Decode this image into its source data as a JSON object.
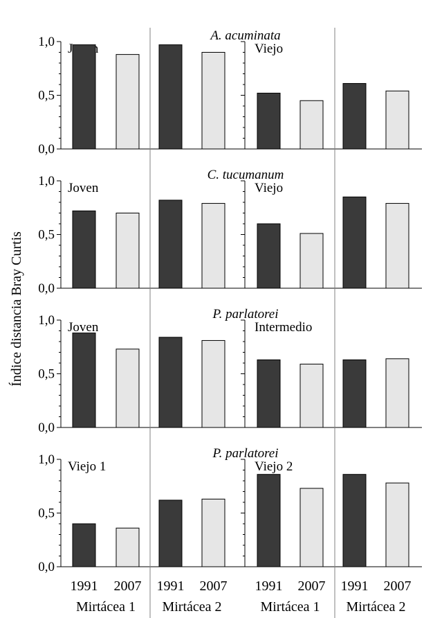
{
  "ylabel": "Índice distancia Bray Curtis",
  "x_groups": [
    {
      "years": [
        "1991",
        "2007"
      ],
      "label": "Mirtácea 1"
    },
    {
      "years": [
        "1991",
        "2007"
      ],
      "label": "Mirtácea 2"
    },
    {
      "years": [
        "1991",
        "2007"
      ],
      "label": "Mirtácea 1"
    },
    {
      "years": [
        "1991",
        "2007"
      ],
      "label": "Mirtácea 2"
    }
  ],
  "colors": {
    "1991": "#3a3a3a",
    "2007": "#e6e6e6",
    "outline": "#000000",
    "divider": "#808080"
  },
  "chart_data": [
    {
      "type": "bar",
      "title": "A. acuminata",
      "ylim": [
        0,
        1.0
      ],
      "yticks": [
        "0,0",
        "0,5",
        "1,0"
      ],
      "panels": [
        {
          "label": "Joven",
          "groups": [
            {
              "name": "Mirtácea 1",
              "categories": [
                "1991",
                "2007"
              ],
              "values": [
                0.97,
                0.88
              ]
            },
            {
              "name": "Mirtácea 2",
              "categories": [
                "1991",
                "2007"
              ],
              "values": [
                0.97,
                0.9
              ]
            }
          ]
        },
        {
          "label": "Viejo",
          "groups": [
            {
              "name": "Mirtácea 1",
              "categories": [
                "1991",
                "2007"
              ],
              "values": [
                0.52,
                0.45
              ]
            },
            {
              "name": "Mirtácea 2",
              "categories": [
                "1991",
                "2007"
              ],
              "values": [
                0.61,
                0.54
              ]
            }
          ]
        }
      ]
    },
    {
      "type": "bar",
      "title": "C. tucumanum",
      "ylim": [
        0,
        1.0
      ],
      "yticks": [
        "0,0",
        "0,5",
        "1,0"
      ],
      "panels": [
        {
          "label": "Joven",
          "groups": [
            {
              "name": "Mirtácea 1",
              "categories": [
                "1991",
                "2007"
              ],
              "values": [
                0.72,
                0.7
              ]
            },
            {
              "name": "Mirtácea 2",
              "categories": [
                "1991",
                "2007"
              ],
              "values": [
                0.82,
                0.79
              ]
            }
          ]
        },
        {
          "label": "Viejo",
          "groups": [
            {
              "name": "Mirtácea 1",
              "categories": [
                "1991",
                "2007"
              ],
              "values": [
                0.6,
                0.51
              ]
            },
            {
              "name": "Mirtácea 2",
              "categories": [
                "1991",
                "2007"
              ],
              "values": [
                0.85,
                0.79
              ]
            }
          ]
        }
      ]
    },
    {
      "type": "bar",
      "title": "P. parlatorei",
      "ylim": [
        0,
        1.0
      ],
      "yticks": [
        "0,0",
        "0,5",
        "1,0"
      ],
      "panels": [
        {
          "label": "Joven",
          "groups": [
            {
              "name": "Mirtácea 1",
              "categories": [
                "1991",
                "2007"
              ],
              "values": [
                0.88,
                0.73
              ]
            },
            {
              "name": "Mirtácea 2",
              "categories": [
                "1991",
                "2007"
              ],
              "values": [
                0.84,
                0.81
              ]
            }
          ]
        },
        {
          "label": "Intermedio",
          "groups": [
            {
              "name": "Mirtácea 1",
              "categories": [
                "1991",
                "2007"
              ],
              "values": [
                0.63,
                0.59
              ]
            },
            {
              "name": "Mirtácea 2",
              "categories": [
                "1991",
                "2007"
              ],
              "values": [
                0.63,
                0.64
              ]
            }
          ]
        }
      ]
    },
    {
      "type": "bar",
      "title": "P. parlatorei",
      "ylim": [
        0,
        1.0
      ],
      "yticks": [
        "0,0",
        "0,5",
        "1,0"
      ],
      "panels": [
        {
          "label": "Viejo 1",
          "groups": [
            {
              "name": "Mirtácea 1",
              "categories": [
                "1991",
                "2007"
              ],
              "values": [
                0.4,
                0.36
              ]
            },
            {
              "name": "Mirtácea 2",
              "categories": [
                "1991",
                "2007"
              ],
              "values": [
                0.62,
                0.63
              ]
            }
          ]
        },
        {
          "label": "Viejo 2",
          "groups": [
            {
              "name": "Mirtácea 1",
              "categories": [
                "1991",
                "2007"
              ],
              "values": [
                0.86,
                0.73
              ]
            },
            {
              "name": "Mirtácea 2",
              "categories": [
                "1991",
                "2007"
              ],
              "values": [
                0.86,
                0.78
              ]
            }
          ]
        }
      ]
    }
  ]
}
